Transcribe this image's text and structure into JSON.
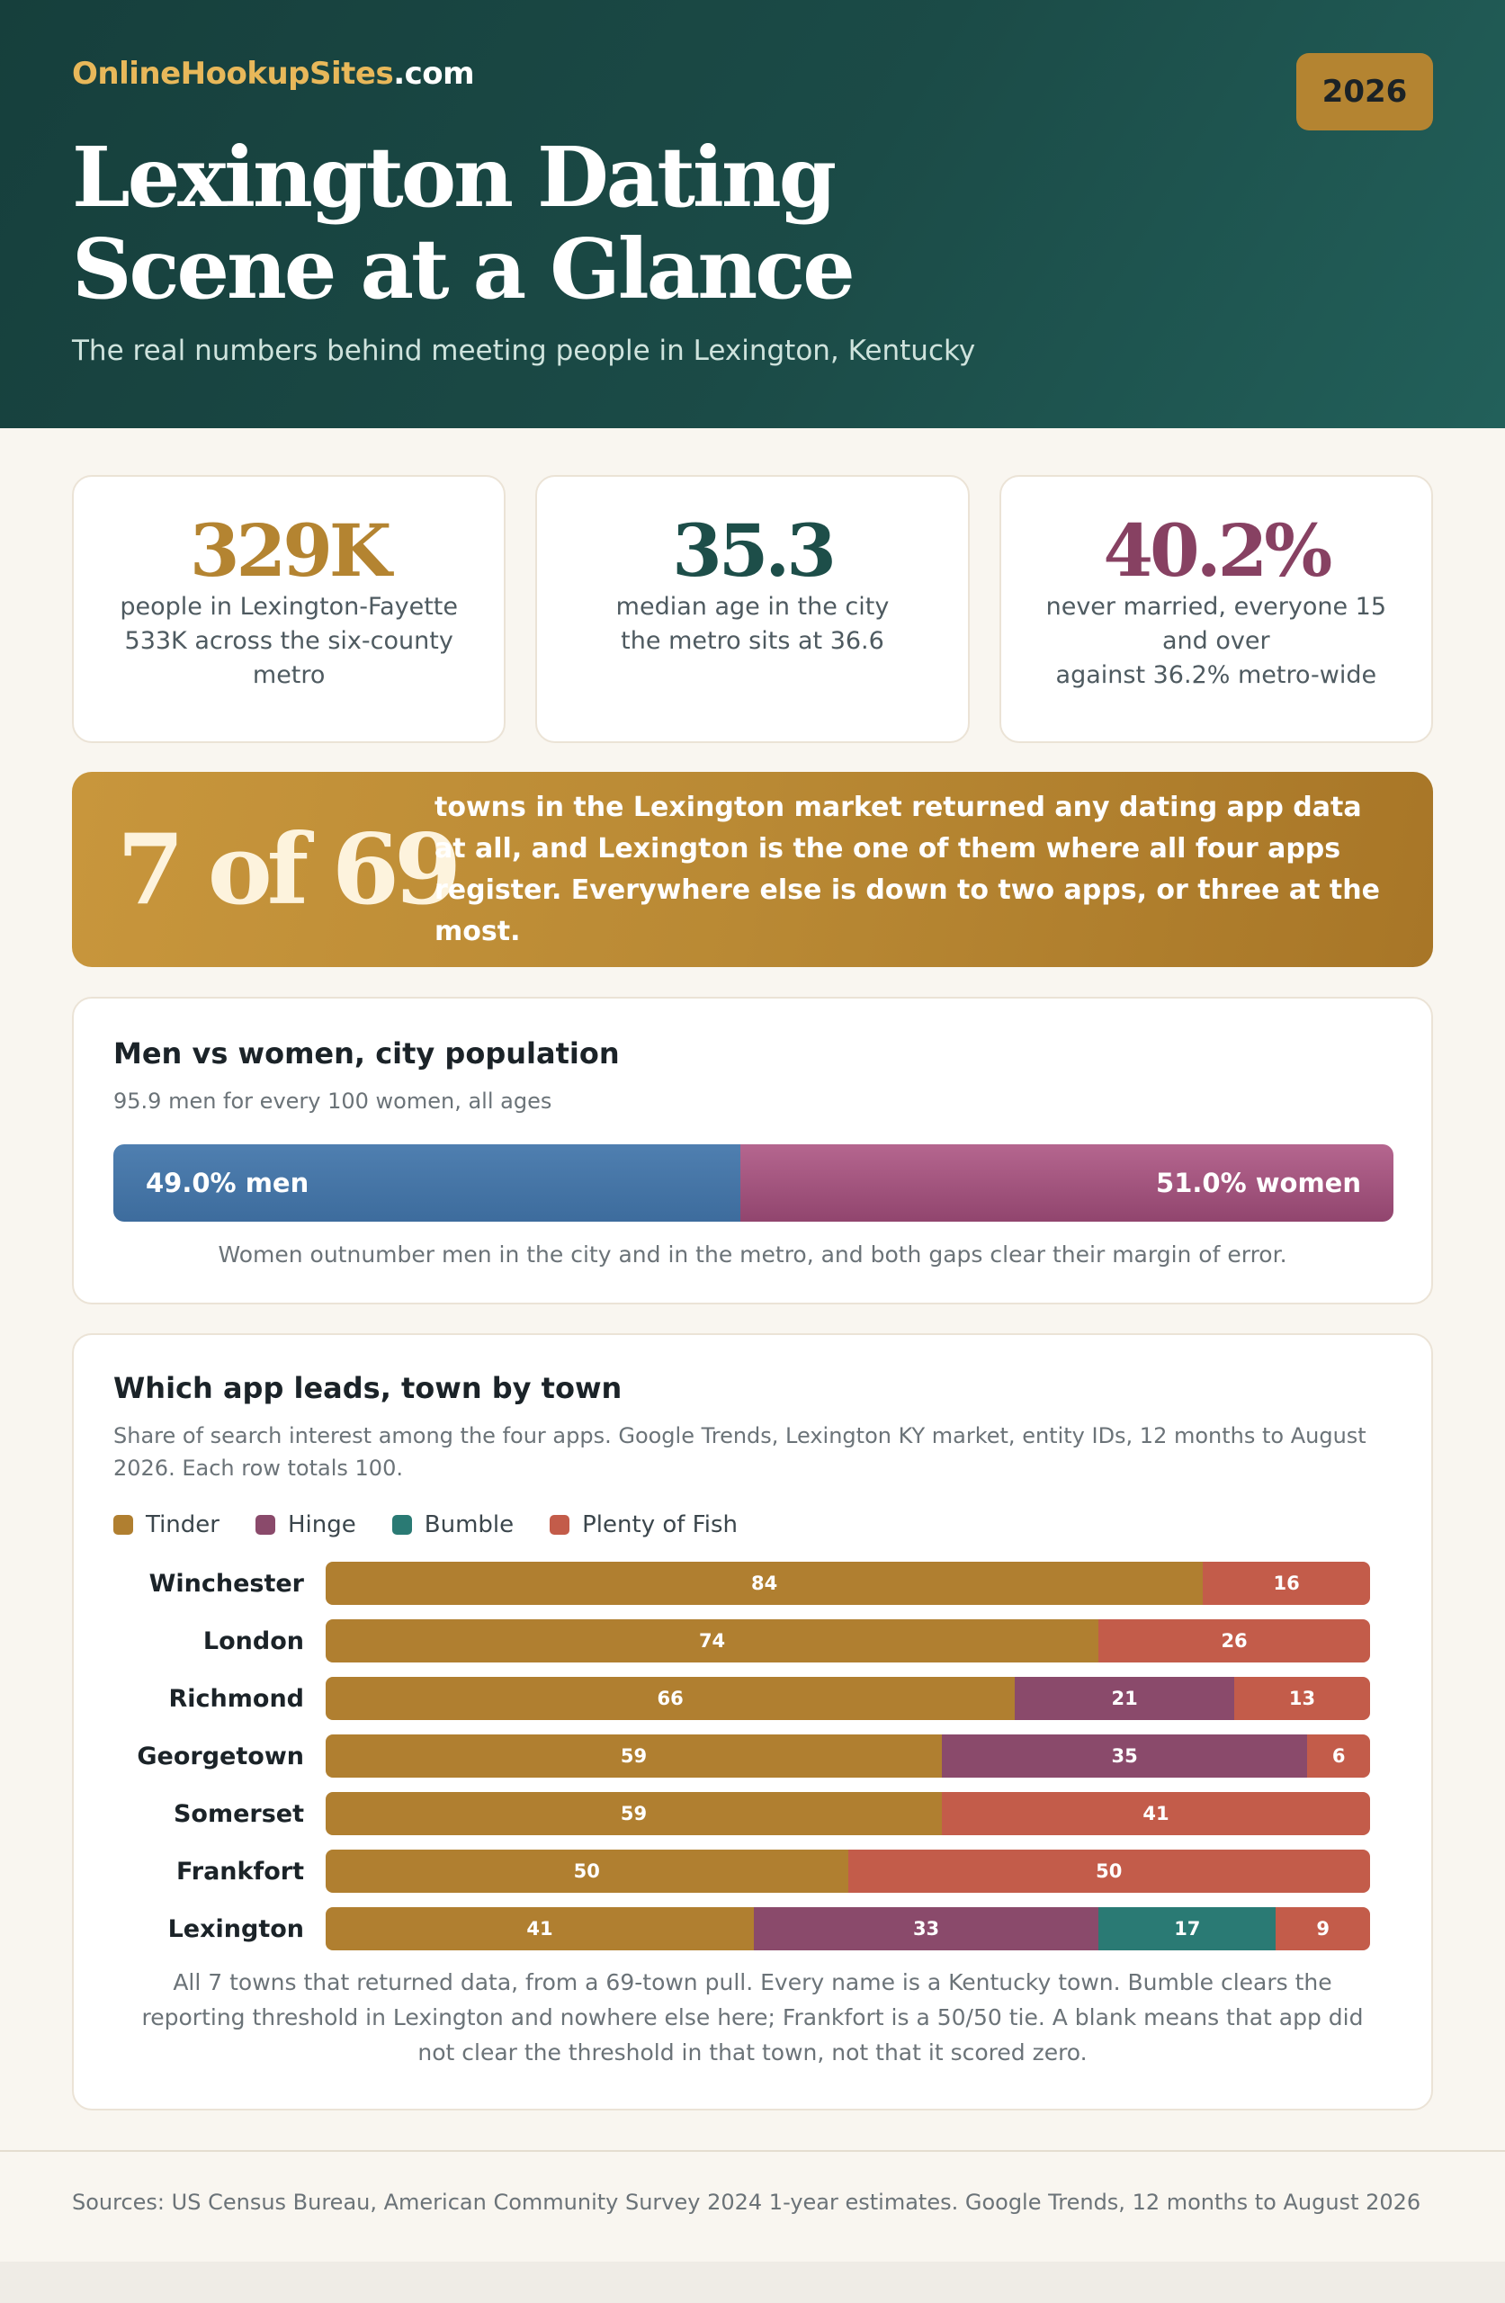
{
  "brand": {
    "accent": "OnlineHookupSites",
    "rest": ".com"
  },
  "year": "2026",
  "title": "Lexington Dating Scene at a Glance",
  "subtitle": "The real numbers behind meeting people in Lexington, Kentucky",
  "stats": [
    {
      "value": "329K",
      "line1": "people in Lexington-Fayette",
      "line2": "533K across the six-county metro",
      "color": "#b48431"
    },
    {
      "value": "35.3",
      "line1": "median age in the city",
      "line2": "the metro sits at 36.6",
      "color": "#1d4e49"
    },
    {
      "value": "40.2%",
      "line1": "never married, everyone 15 and over",
      "line2": "against 36.2% metro-wide",
      "color": "#874162"
    }
  ],
  "callout": {
    "number": "7 of 69",
    "text": "towns in the Lexington market returned any dating app data at all, and Lexington is the one of them where all four apps register. Everywhere else is down to two apps, or three at the most."
  },
  "gender": {
    "title": "Men vs women, city population",
    "subtitle": "95.9 men for every 100 women, all ages",
    "men_share": 49.0,
    "women_share": 51.0,
    "men_label": "49.0% men",
    "women_label": "51.0% women",
    "note": "Women outnumber men in the city and in the metro, and both gaps clear their margin of error."
  },
  "apps": {
    "title": "Which app leads, town by town",
    "subtitle": "Share of search interest among the four apps. Google Trends, Lexington KY market, entity IDs, 12 months to August 2026. Each row totals 100.",
    "note": "All 7 towns that returned data, from a 69-town pull. Every name is a Kentucky town. Bumble clears the reporting threshold in Lexington and nowhere else here; Frankfort is a 50/50 tie. A blank means that app did not clear the threshold in that town, not that it scored zero."
  },
  "chart_data": {
    "type": "bar",
    "orientation": "horizontal",
    "stacked": true,
    "categories": [
      "Winchester",
      "London",
      "Richmond",
      "Georgetown",
      "Somerset",
      "Frankfort",
      "Lexington"
    ],
    "series": [
      {
        "name": "Tinder",
        "color": "#b07f30",
        "values": [
          84,
          74,
          66,
          59,
          59,
          50,
          41
        ]
      },
      {
        "name": "Hinge",
        "color": "#8a4a6b",
        "values": [
          null,
          null,
          21,
          35,
          null,
          null,
          33
        ]
      },
      {
        "name": "Bumble",
        "color": "#2a7a74",
        "values": [
          null,
          null,
          null,
          null,
          null,
          null,
          17
        ]
      },
      {
        "name": "Plenty of Fish",
        "color": "#c35c4a",
        "values": [
          16,
          26,
          13,
          6,
          41,
          50,
          9
        ]
      }
    ],
    "xlim": [
      0,
      100
    ],
    "legend": "top-left"
  },
  "footer": "Sources: US Census Bureau, American Community Survey 2024 1-year estimates. Google Trends, 12 months to August 2026"
}
